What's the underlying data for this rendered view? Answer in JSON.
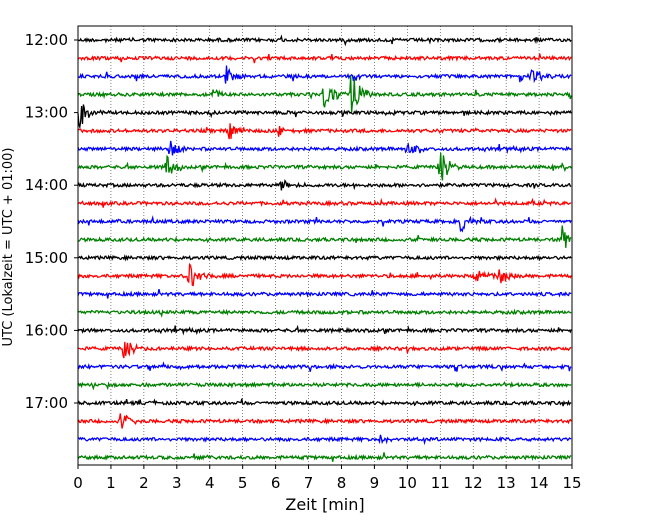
{
  "chart_data": {
    "type": "line",
    "title": "",
    "xlabel": "Zeit  [min]",
    "ylabel": "UTC (Lokalzeit = UTC + 01:00)",
    "xlim": [
      0,
      15
    ],
    "x_ticks": [
      0,
      1,
      2,
      3,
      4,
      5,
      6,
      7,
      8,
      9,
      10,
      11,
      12,
      13,
      14,
      15
    ],
    "y_tick_labels": [
      "12:00",
      "13:00",
      "14:00",
      "15:00",
      "16:00",
      "17:00"
    ],
    "grid": "vertical-dotted",
    "trace_interval_minutes": 15,
    "start_time": "12:00",
    "trace_colors": [
      "#000000",
      "#ff0000",
      "#0000ff",
      "#008000"
    ],
    "events": [
      {
        "trace": "12:30",
        "minute": 4.5,
        "amplitude": 0.45
      },
      {
        "trace": "12:30",
        "minute": 13.8,
        "amplitude": 0.4
      },
      {
        "trace": "12:30",
        "minute": 13.4,
        "amplitude": 0.2
      },
      {
        "trace": "12:45",
        "minute": 7.5,
        "amplitude": 0.8
      },
      {
        "trace": "12:45",
        "minute": 8.3,
        "amplitude": 0.9
      },
      {
        "trace": "12:45",
        "minute": 4.1,
        "amplitude": 0.2
      },
      {
        "trace": "13:00",
        "minute": 0.05,
        "amplitude": 0.55
      },
      {
        "trace": "13:15",
        "minute": 4.6,
        "amplitude": 0.3
      },
      {
        "trace": "13:15",
        "minute": 6.1,
        "amplitude": 0.2
      },
      {
        "trace": "13:30",
        "minute": 2.8,
        "amplitude": 0.35
      },
      {
        "trace": "13:30",
        "minute": 10.0,
        "amplitude": 0.3
      },
      {
        "trace": "13:45",
        "minute": 2.7,
        "amplitude": 0.45
      },
      {
        "trace": "13:45",
        "minute": 11.0,
        "amplitude": 0.65
      },
      {
        "trace": "14:00",
        "minute": 6.2,
        "amplitude": 0.2
      },
      {
        "trace": "14:30",
        "minute": 11.6,
        "amplitude": 0.4
      },
      {
        "trace": "14:45",
        "minute": 14.7,
        "amplitude": 0.55
      },
      {
        "trace": "15:15",
        "minute": 3.4,
        "amplitude": 0.55
      },
      {
        "trace": "15:15",
        "minute": 12.1,
        "amplitude": 0.35
      },
      {
        "trace": "15:15",
        "minute": 12.8,
        "amplitude": 0.35
      },
      {
        "trace": "16:15",
        "minute": 1.4,
        "amplitude": 0.45
      },
      {
        "trace": "17:15",
        "minute": 1.3,
        "amplitude": 0.35
      },
      {
        "trace": "17:30",
        "minute": 9.2,
        "amplitude": 0.15
      }
    ]
  }
}
